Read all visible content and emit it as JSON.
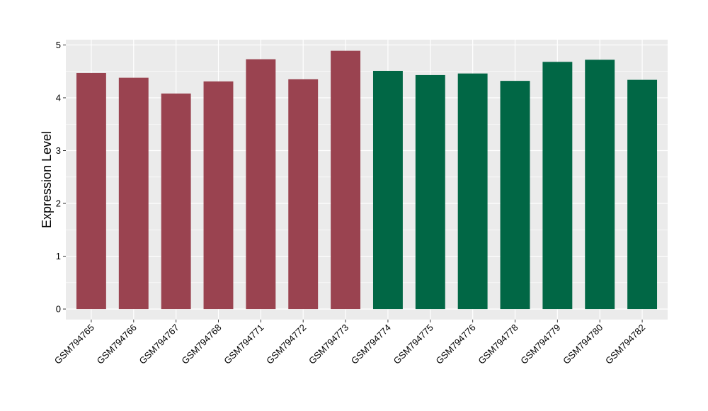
{
  "chart_data": {
    "type": "bar",
    "title": "",
    "xlabel": "",
    "ylabel": "Expression Level",
    "ylim": [
      -0.2,
      5.1
    ],
    "yticks": [
      0,
      1,
      2,
      3,
      4,
      5
    ],
    "grid": true,
    "legend": "none",
    "categories": [
      "GSM794765",
      "GSM794766",
      "GSM794767",
      "GSM794768",
      "GSM794771",
      "GSM794772",
      "GSM794773",
      "GSM794774",
      "GSM794775",
      "GSM794776",
      "GSM794778",
      "GSM794779",
      "GSM794780",
      "GSM794782"
    ],
    "values": [
      4.47,
      4.38,
      4.08,
      4.31,
      4.73,
      4.35,
      4.89,
      4.51,
      4.43,
      4.46,
      4.32,
      4.68,
      4.72,
      4.34
    ],
    "bar_colors": [
      "#9a4350",
      "#9a4350",
      "#9a4350",
      "#9a4350",
      "#9a4350",
      "#9a4350",
      "#9a4350",
      "#016745",
      "#016745",
      "#016745",
      "#016745",
      "#016745",
      "#016745",
      "#016745"
    ],
    "panel_color": "#ebebeb",
    "grid_color": "#ffffff"
  }
}
